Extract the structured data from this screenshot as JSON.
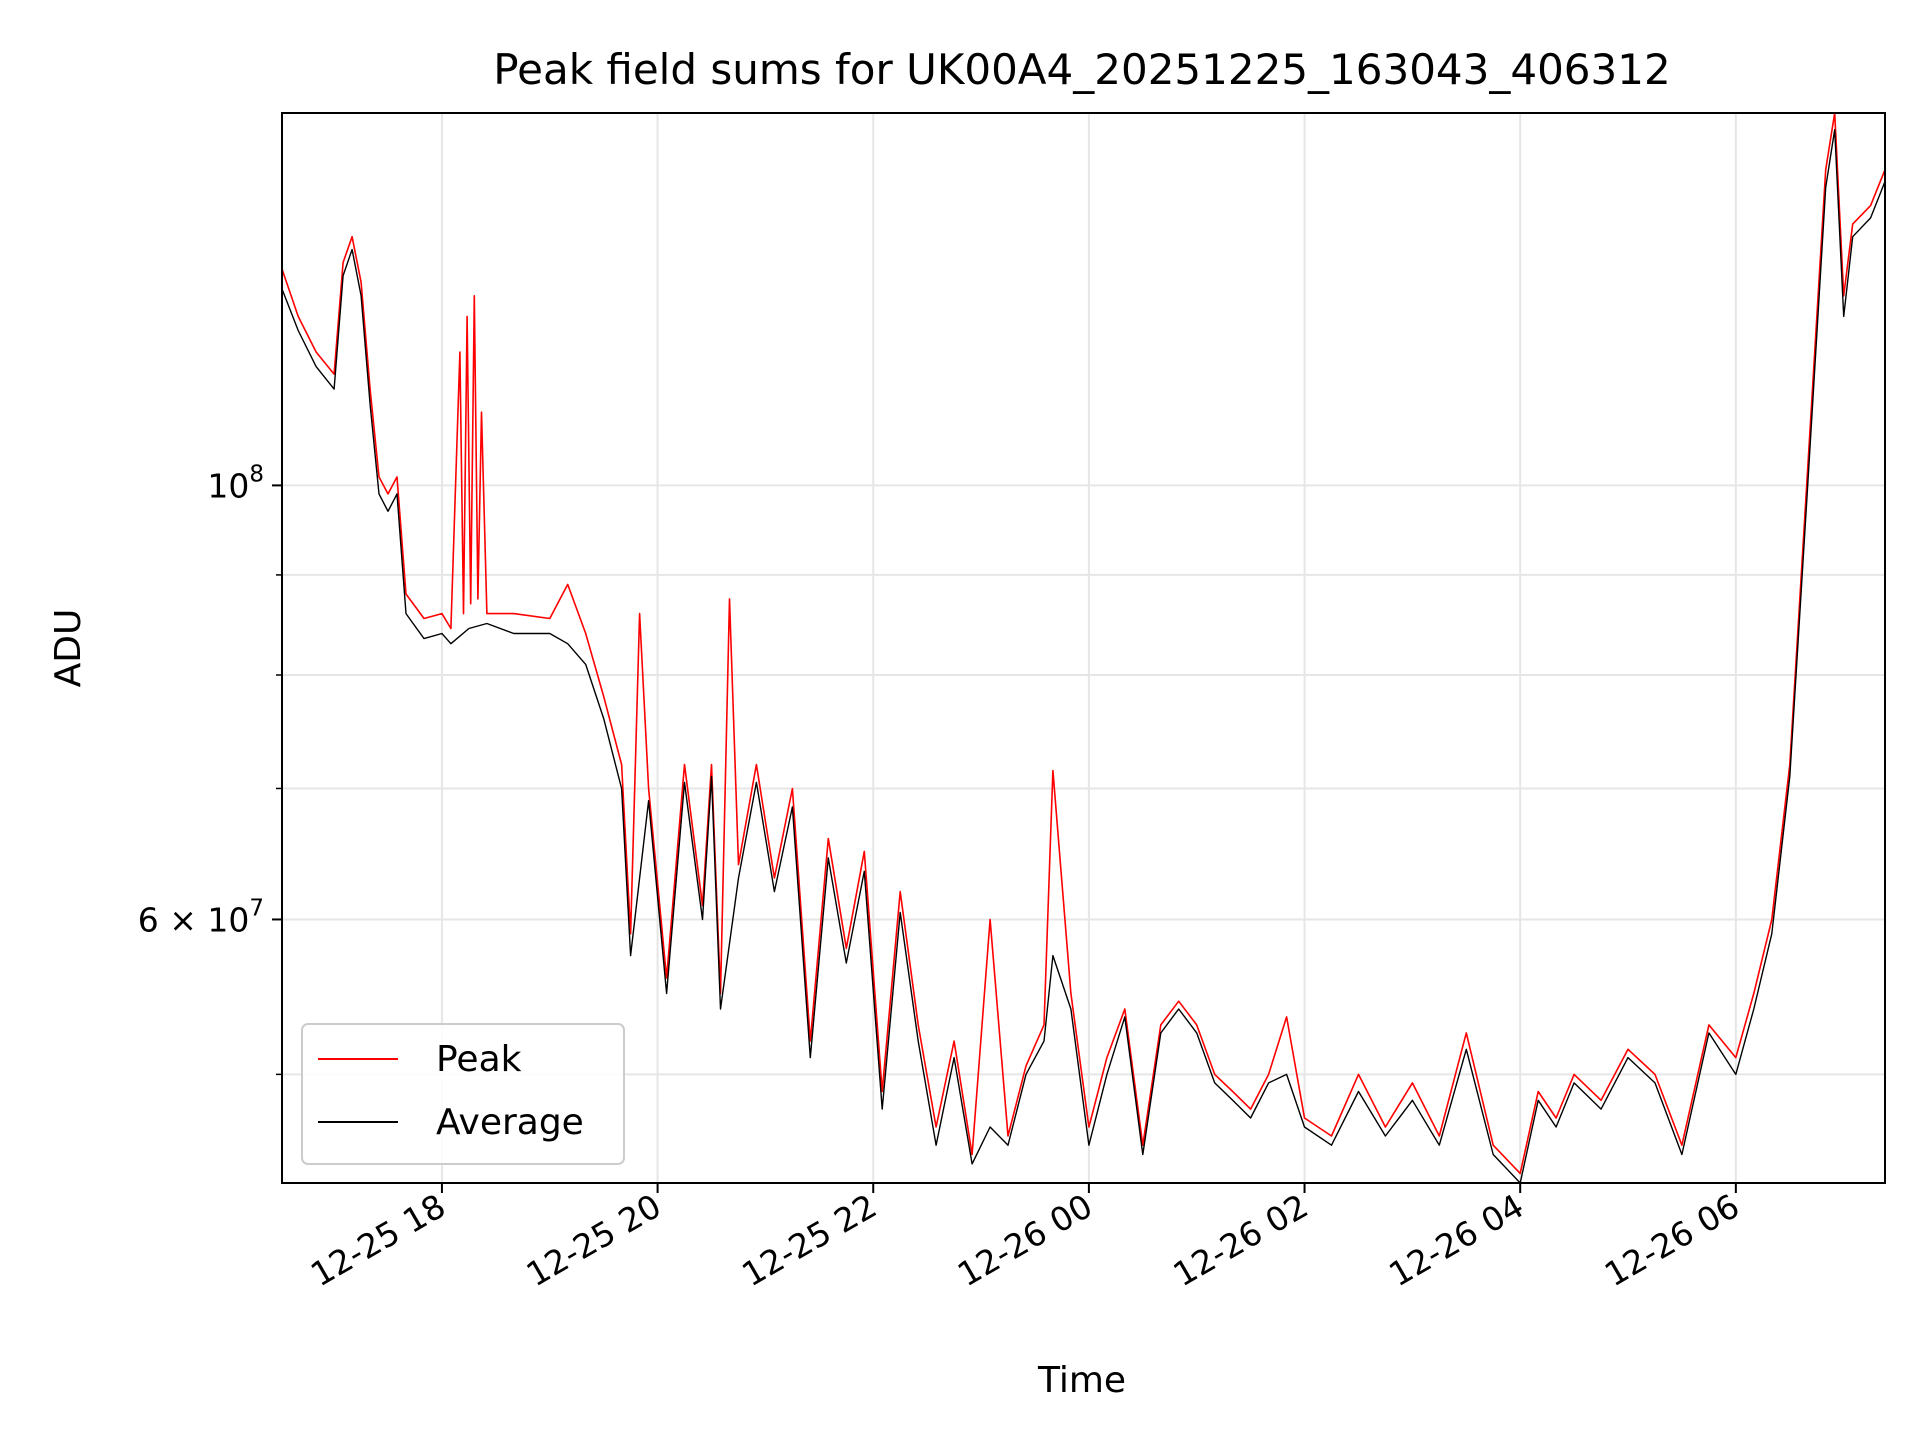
{
  "chart_data": {
    "type": "line",
    "title": "Peak field sums for UK00A4_20251225_163043_406312",
    "xlabel": "Time",
    "ylabel": "ADU",
    "yscale": "log",
    "ylim": [
      44000000,
      155000000
    ],
    "xlim": [
      "12-25 16:31",
      "12-26 07:23"
    ],
    "grid": true,
    "legend": "lower-left",
    "x_ticks": [
      "12-25 18",
      "12-25 20",
      "12-25 22",
      "12-26 00",
      "12-26 02",
      "12-26 04",
      "12-26 06"
    ],
    "y_ticks": [
      {
        "value": 100000000,
        "base": "10",
        "exp": "8"
      },
      {
        "value": 60000000,
        "base": "6 × 10",
        "exp": "7"
      }
    ],
    "y_minor_gridlines": [
      50000000,
      70000000,
      80000000,
      90000000
    ],
    "series": [
      {
        "name": "Peak",
        "color": "#ff0000",
        "points": [
          [
            "12-25 16:31",
            129000000
          ],
          [
            "12-25 16:40",
            122000000
          ],
          [
            "12-25 16:50",
            117000000
          ],
          [
            "12-25 17:00",
            114000000
          ],
          [
            "12-25 17:05",
            130000000
          ],
          [
            "12-25 17:10",
            134000000
          ],
          [
            "12-25 17:15",
            127000000
          ],
          [
            "12-25 17:20",
            112000000
          ],
          [
            "12-25 17:25",
            101000000
          ],
          [
            "12-25 17:30",
            99000000
          ],
          [
            "12-25 17:35",
            101000000
          ],
          [
            "12-25 17:40",
            88000000
          ],
          [
            "12-25 17:50",
            85500000
          ],
          [
            "12-25 18:00",
            86000000
          ],
          [
            "12-25 18:05",
            84500000
          ],
          [
            "12-25 18:10",
            117000000
          ],
          [
            "12-25 18:12",
            86000000
          ],
          [
            "12-25 18:14",
            122000000
          ],
          [
            "12-25 18:16",
            87000000
          ],
          [
            "12-25 18:18",
            125000000
          ],
          [
            "12-25 18:20",
            87500000
          ],
          [
            "12-25 18:22",
            109000000
          ],
          [
            "12-25 18:25",
            86000000
          ],
          [
            "12-25 18:40",
            86000000
          ],
          [
            "12-25 19:00",
            85500000
          ],
          [
            "12-25 19:10",
            89000000
          ],
          [
            "12-25 19:20",
            84000000
          ],
          [
            "12-25 19:30",
            78000000
          ],
          [
            "12-25 19:40",
            72000000
          ],
          [
            "12-25 19:45",
            59000000
          ],
          [
            "12-25 19:50",
            86000000
          ],
          [
            "12-25 19:55",
            70000000
          ],
          [
            "12-25 20:05",
            56000000
          ],
          [
            "12-25 20:15",
            72000000
          ],
          [
            "12-25 20:25",
            61000000
          ],
          [
            "12-25 20:30",
            72000000
          ],
          [
            "12-25 20:35",
            55000000
          ],
          [
            "12-25 20:40",
            87500000
          ],
          [
            "12-25 20:45",
            64000000
          ],
          [
            "12-25 20:55",
            72000000
          ],
          [
            "12-25 21:05",
            63000000
          ],
          [
            "12-25 21:15",
            70000000
          ],
          [
            "12-25 21:25",
            52000000
          ],
          [
            "12-25 21:35",
            66000000
          ],
          [
            "12-25 21:45",
            58000000
          ],
          [
            "12-25 21:55",
            65000000
          ],
          [
            "12-25 22:05",
            49000000
          ],
          [
            "12-25 22:15",
            62000000
          ],
          [
            "12-25 22:25",
            53000000
          ],
          [
            "12-25 22:35",
            47000000
          ],
          [
            "12-25 22:45",
            52000000
          ],
          [
            "12-25 22:55",
            45500000
          ],
          [
            "12-25 23:05",
            60000000
          ],
          [
            "12-25 23:15",
            46500000
          ],
          [
            "12-25 23:25",
            50500000
          ],
          [
            "12-25 23:35",
            53000000
          ],
          [
            "12-25 23:40",
            71500000
          ],
          [
            "12-25 23:50",
            55000000
          ],
          [
            "12-26 00:00",
            47000000
          ],
          [
            "12-26 00:10",
            51000000
          ],
          [
            "12-26 00:20",
            54000000
          ],
          [
            "12-26 00:30",
            46000000
          ],
          [
            "12-26 00:40",
            53000000
          ],
          [
            "12-26 00:50",
            54500000
          ],
          [
            "12-26 01:00",
            53000000
          ],
          [
            "12-26 01:10",
            50000000
          ],
          [
            "12-26 01:20",
            49000000
          ],
          [
            "12-26 01:30",
            48000000
          ],
          [
            "12-26 01:40",
            50000000
          ],
          [
            "12-26 01:50",
            53500000
          ],
          [
            "12-26 02:00",
            47500000
          ],
          [
            "12-26 02:15",
            46500000
          ],
          [
            "12-26 02:30",
            50000000
          ],
          [
            "12-26 02:45",
            47000000
          ],
          [
            "12-26 03:00",
            49500000
          ],
          [
            "12-26 03:15",
            46500000
          ],
          [
            "12-26 03:30",
            52500000
          ],
          [
            "12-26 03:45",
            46000000
          ],
          [
            "12-26 04:00",
            44500000
          ],
          [
            "12-26 04:10",
            49000000
          ],
          [
            "12-26 04:20",
            47500000
          ],
          [
            "12-26 04:30",
            50000000
          ],
          [
            "12-26 04:45",
            48500000
          ],
          [
            "12-26 05:00",
            51500000
          ],
          [
            "12-26 05:15",
            50000000
          ],
          [
            "12-26 05:30",
            46000000
          ],
          [
            "12-26 05:45",
            53000000
          ],
          [
            "12-26 06:00",
            51000000
          ],
          [
            "12-26 06:10",
            55000000
          ],
          [
            "12-26 06:20",
            60000000
          ],
          [
            "12-26 06:30",
            72000000
          ],
          [
            "12-26 06:40",
            102000000
          ],
          [
            "12-26 06:50",
            145000000
          ],
          [
            "12-26 06:55",
            155000000
          ],
          [
            "12-26 07:00",
            125000000
          ],
          [
            "12-26 07:05",
            136000000
          ],
          [
            "12-26 07:15",
            139000000
          ],
          [
            "12-26 07:23",
            145000000
          ]
        ]
      },
      {
        "name": "Average",
        "color": "#000000",
        "points": [
          [
            "12-25 16:31",
            126000000
          ],
          [
            "12-25 16:40",
            120000000
          ],
          [
            "12-25 16:50",
            115000000
          ],
          [
            "12-25 17:00",
            112000000
          ],
          [
            "12-25 17:05",
            128000000
          ],
          [
            "12-25 17:10",
            132000000
          ],
          [
            "12-25 17:15",
            125000000
          ],
          [
            "12-25 17:20",
            110000000
          ],
          [
            "12-25 17:25",
            99000000
          ],
          [
            "12-25 17:30",
            97000000
          ],
          [
            "12-25 17:35",
            99000000
          ],
          [
            "12-25 17:40",
            86000000
          ],
          [
            "12-25 17:50",
            83500000
          ],
          [
            "12-25 18:00",
            84000000
          ],
          [
            "12-25 18:05",
            83000000
          ],
          [
            "12-25 18:15",
            84500000
          ],
          [
            "12-25 18:25",
            85000000
          ],
          [
            "12-25 18:40",
            84000000
          ],
          [
            "12-25 19:00",
            84000000
          ],
          [
            "12-25 19:10",
            83000000
          ],
          [
            "12-25 19:20",
            81000000
          ],
          [
            "12-25 19:30",
            76000000
          ],
          [
            "12-25 19:40",
            70000000
          ],
          [
            "12-25 19:45",
            57500000
          ],
          [
            "12-25 19:55",
            69000000
          ],
          [
            "12-25 20:05",
            55000000
          ],
          [
            "12-25 20:15",
            70500000
          ],
          [
            "12-25 20:25",
            60000000
          ],
          [
            "12-25 20:30",
            71000000
          ],
          [
            "12-25 20:35",
            54000000
          ],
          [
            "12-25 20:45",
            63000000
          ],
          [
            "12-25 20:55",
            70500000
          ],
          [
            "12-25 21:05",
            62000000
          ],
          [
            "12-25 21:15",
            68500000
          ],
          [
            "12-25 21:25",
            51000000
          ],
          [
            "12-25 21:35",
            64500000
          ],
          [
            "12-25 21:45",
            57000000
          ],
          [
            "12-25 21:55",
            63500000
          ],
          [
            "12-25 22:05",
            48000000
          ],
          [
            "12-25 22:15",
            60500000
          ],
          [
            "12-25 22:25",
            52000000
          ],
          [
            "12-25 22:35",
            46000000
          ],
          [
            "12-25 22:45",
            51000000
          ],
          [
            "12-25 22:55",
            45000000
          ],
          [
            "12-25 23:05",
            47000000
          ],
          [
            "12-25 23:15",
            46000000
          ],
          [
            "12-25 23:25",
            50000000
          ],
          [
            "12-25 23:35",
            52000000
          ],
          [
            "12-25 23:40",
            57500000
          ],
          [
            "12-25 23:50",
            54000000
          ],
          [
            "12-26 00:00",
            46000000
          ],
          [
            "12-26 00:10",
            50000000
          ],
          [
            "12-26 00:20",
            53500000
          ],
          [
            "12-26 00:30",
            45500000
          ],
          [
            "12-26 00:40",
            52500000
          ],
          [
            "12-26 00:50",
            54000000
          ],
          [
            "12-26 01:00",
            52500000
          ],
          [
            "12-26 01:10",
            49500000
          ],
          [
            "12-26 01:20",
            48500000
          ],
          [
            "12-26 01:30",
            47500000
          ],
          [
            "12-26 01:40",
            49500000
          ],
          [
            "12-26 01:50",
            50000000
          ],
          [
            "12-26 02:00",
            47000000
          ],
          [
            "12-26 02:15",
            46000000
          ],
          [
            "12-26 02:30",
            49000000
          ],
          [
            "12-26 02:45",
            46500000
          ],
          [
            "12-26 03:00",
            48500000
          ],
          [
            "12-26 03:15",
            46000000
          ],
          [
            "12-26 03:30",
            51500000
          ],
          [
            "12-26 03:45",
            45500000
          ],
          [
            "12-26 04:00",
            44000000
          ],
          [
            "12-26 04:10",
            48500000
          ],
          [
            "12-26 04:20",
            47000000
          ],
          [
            "12-26 04:30",
            49500000
          ],
          [
            "12-26 04:45",
            48000000
          ],
          [
            "12-26 05:00",
            51000000
          ],
          [
            "12-26 05:15",
            49500000
          ],
          [
            "12-26 05:30",
            45500000
          ],
          [
            "12-26 05:45",
            52500000
          ],
          [
            "12-26 06:00",
            50000000
          ],
          [
            "12-26 06:10",
            54000000
          ],
          [
            "12-26 06:20",
            59000000
          ],
          [
            "12-26 06:30",
            71000000
          ],
          [
            "12-26 06:40",
            100000000
          ],
          [
            "12-26 06:50",
            142000000
          ],
          [
            "12-26 06:55",
            152000000
          ],
          [
            "12-26 07:00",
            122000000
          ],
          [
            "12-26 07:05",
            134000000
          ],
          [
            "12-26 07:15",
            137000000
          ],
          [
            "12-26 07:23",
            143000000
          ]
        ]
      }
    ]
  }
}
